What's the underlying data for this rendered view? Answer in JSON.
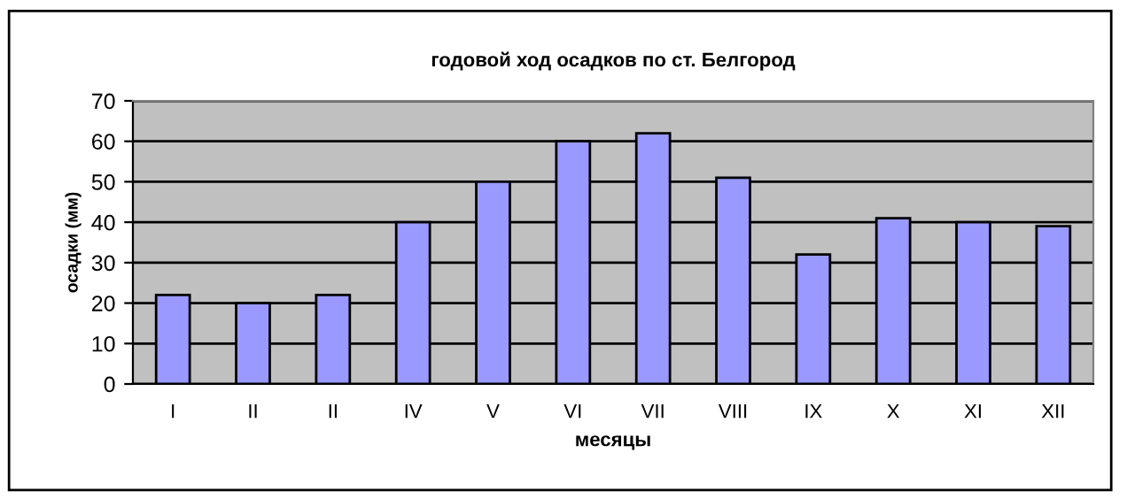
{
  "chart_data": {
    "type": "bar",
    "title": "годовой ход осадков по ст. Белгород",
    "xlabel": "месяцы",
    "ylabel": "осадки (мм)",
    "categories": [
      "I",
      "II",
      "II",
      "IV",
      "V",
      "VI",
      "VII",
      "VIII",
      "IX",
      "X",
      "XI",
      "XII"
    ],
    "values": [
      22,
      20,
      22,
      40,
      50,
      60,
      62,
      51,
      32,
      41,
      40,
      39
    ],
    "color": "#9999ff",
    "ylim": [
      0,
      70
    ],
    "yticks": [
      0,
      10,
      20,
      30,
      40,
      50,
      60,
      70
    ],
    "grid": "y",
    "legend": false
  }
}
